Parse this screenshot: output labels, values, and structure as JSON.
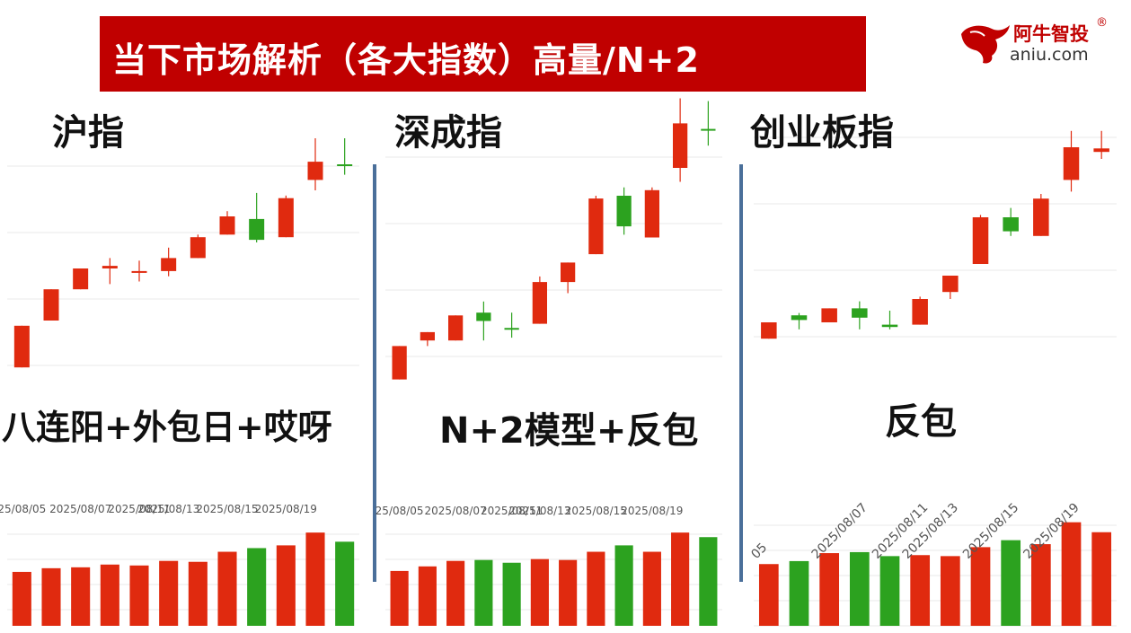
{
  "banner": {
    "title": "当下市场解析（各大指数）高量/N+2"
  },
  "brand": {
    "name_cn": "阿牛智投",
    "reg_mark": "®",
    "domain": "aniu.com"
  },
  "colors": {
    "up": "#e02a0f",
    "down": "#2ca21f",
    "banner_bg": "#c00000",
    "divider": "#4a6f9a"
  },
  "chart_data": [
    {
      "type": "candlestick",
      "title": "沪指",
      "annotation": "八连阳+外包日+哎呀",
      "x_tick_labels": [
        "25/08/05",
        "2025/08/07",
        "2025/08/11",
        "2025/08/13",
        "2025/08/15",
        "2025/08/19"
      ],
      "ylim": [
        0,
        10
      ],
      "candles": [
        {
          "o": 0.2,
          "c": 1.8,
          "h": 1.8,
          "l": 0.2,
          "dir": "up"
        },
        {
          "o": 2.0,
          "c": 3.2,
          "h": 3.2,
          "l": 2.0,
          "dir": "up"
        },
        {
          "o": 3.2,
          "c": 4.0,
          "h": 4.0,
          "l": 3.2,
          "dir": "up"
        },
        {
          "o": 4.0,
          "c": 4.1,
          "h": 4.4,
          "l": 3.4,
          "dir": "up"
        },
        {
          "o": 3.85,
          "c": 3.9,
          "h": 4.3,
          "l": 3.5,
          "dir": "up"
        },
        {
          "o": 3.9,
          "c": 4.4,
          "h": 4.8,
          "l": 3.7,
          "dir": "up"
        },
        {
          "o": 4.4,
          "c": 5.2,
          "h": 5.3,
          "l": 4.4,
          "dir": "up"
        },
        {
          "o": 5.3,
          "c": 6.0,
          "h": 6.2,
          "l": 5.3,
          "dir": "up"
        },
        {
          "o": 5.9,
          "c": 5.1,
          "h": 6.9,
          "l": 5.0,
          "dir": "down"
        },
        {
          "o": 5.2,
          "c": 6.7,
          "h": 6.8,
          "l": 5.2,
          "dir": "up"
        },
        {
          "o": 7.4,
          "c": 8.1,
          "h": 9.0,
          "l": 7.0,
          "dir": "up"
        },
        {
          "o": 7.95,
          "c": 8.0,
          "h": 9.0,
          "l": 7.6,
          "dir": "down"
        }
      ],
      "volumes": [
        {
          "v": 5.9,
          "dir": "up"
        },
        {
          "v": 6.3,
          "dir": "up"
        },
        {
          "v": 6.4,
          "dir": "up"
        },
        {
          "v": 6.7,
          "dir": "up"
        },
        {
          "v": 6.6,
          "dir": "up"
        },
        {
          "v": 7.1,
          "dir": "up"
        },
        {
          "v": 7.0,
          "dir": "up"
        },
        {
          "v": 8.1,
          "dir": "up"
        },
        {
          "v": 8.5,
          "dir": "down"
        },
        {
          "v": 8.8,
          "dir": "up"
        },
        {
          "v": 10.2,
          "dir": "up"
        },
        {
          "v": 9.2,
          "dir": "down"
        }
      ]
    },
    {
      "type": "candlestick",
      "title": "深成指",
      "annotation": "N+2模型+反包",
      "x_tick_labels": [
        "25/08/05",
        "2025/08/07",
        "2025/08/11",
        "2025/08/13",
        "2025/08/15",
        "2025/08/19"
      ],
      "ylim": [
        0,
        10
      ],
      "candles": [
        {
          "o": 0.4,
          "c": 1.6,
          "h": 1.6,
          "l": 0.4,
          "dir": "up"
        },
        {
          "o": 1.8,
          "c": 2.1,
          "h": 2.1,
          "l": 1.6,
          "dir": "up"
        },
        {
          "o": 1.8,
          "c": 2.7,
          "h": 2.7,
          "l": 1.8,
          "dir": "up"
        },
        {
          "o": 2.8,
          "c": 2.5,
          "h": 3.2,
          "l": 1.8,
          "dir": "down"
        },
        {
          "o": 2.2,
          "c": 2.25,
          "h": 2.8,
          "l": 1.9,
          "dir": "down"
        },
        {
          "o": 2.4,
          "c": 3.9,
          "h": 4.1,
          "l": 2.4,
          "dir": "up"
        },
        {
          "o": 3.9,
          "c": 4.6,
          "h": 4.6,
          "l": 3.5,
          "dir": "up"
        },
        {
          "o": 4.9,
          "c": 6.9,
          "h": 7.0,
          "l": 4.9,
          "dir": "up"
        },
        {
          "o": 7.0,
          "c": 5.9,
          "h": 7.3,
          "l": 5.6,
          "dir": "down"
        },
        {
          "o": 5.5,
          "c": 7.2,
          "h": 7.3,
          "l": 5.5,
          "dir": "up"
        },
        {
          "o": 8.0,
          "c": 9.6,
          "h": 10.5,
          "l": 7.5,
          "dir": "up"
        },
        {
          "o": 9.35,
          "c": 9.4,
          "h": 10.4,
          "l": 8.8,
          "dir": "down"
        }
      ],
      "volumes": [
        {
          "v": 6.0,
          "dir": "up"
        },
        {
          "v": 6.5,
          "dir": "up"
        },
        {
          "v": 7.1,
          "dir": "up"
        },
        {
          "v": 7.2,
          "dir": "down"
        },
        {
          "v": 6.9,
          "dir": "down"
        },
        {
          "v": 7.3,
          "dir": "up"
        },
        {
          "v": 7.2,
          "dir": "up"
        },
        {
          "v": 8.1,
          "dir": "up"
        },
        {
          "v": 8.8,
          "dir": "down"
        },
        {
          "v": 8.1,
          "dir": "up"
        },
        {
          "v": 10.2,
          "dir": "up"
        },
        {
          "v": 9.7,
          "dir": "down"
        }
      ]
    },
    {
      "type": "candlestick",
      "title": "创业板指",
      "annotation": "反包",
      "x_tick_labels": [
        "05",
        "2025/08/07",
        "2025/08/11",
        "2025/08/13",
        "2025/08/15",
        "2025/08/19"
      ],
      "ylim": [
        0,
        10
      ],
      "candles": [
        {
          "o": 0.3,
          "c": 1.0,
          "h": 1.0,
          "l": 0.3,
          "dir": "up"
        },
        {
          "o": 1.3,
          "c": 1.1,
          "h": 1.4,
          "l": 0.7,
          "dir": "down"
        },
        {
          "o": 1.0,
          "c": 1.6,
          "h": 1.6,
          "l": 1.0,
          "dir": "up"
        },
        {
          "o": 1.6,
          "c": 1.2,
          "h": 1.9,
          "l": 0.7,
          "dir": "down"
        },
        {
          "o": 0.9,
          "c": 0.8,
          "h": 1.5,
          "l": 0.7,
          "dir": "down"
        },
        {
          "o": 0.9,
          "c": 2.0,
          "h": 2.1,
          "l": 0.9,
          "dir": "up"
        },
        {
          "o": 2.3,
          "c": 3.0,
          "h": 3.0,
          "l": 2.0,
          "dir": "up"
        },
        {
          "o": 3.5,
          "c": 5.5,
          "h": 5.6,
          "l": 3.5,
          "dir": "up"
        },
        {
          "o": 5.5,
          "c": 4.9,
          "h": 5.9,
          "l": 4.7,
          "dir": "down"
        },
        {
          "o": 4.7,
          "c": 6.3,
          "h": 6.5,
          "l": 4.7,
          "dir": "up"
        },
        {
          "o": 7.1,
          "c": 8.5,
          "h": 9.2,
          "l": 6.6,
          "dir": "up"
        },
        {
          "o": 8.3,
          "c": 8.45,
          "h": 9.2,
          "l": 8.0,
          "dir": "up"
        }
      ],
      "volumes": [
        {
          "v": 6.2,
          "dir": "up"
        },
        {
          "v": 6.5,
          "dir": "down"
        },
        {
          "v": 7.3,
          "dir": "up"
        },
        {
          "v": 7.4,
          "dir": "down"
        },
        {
          "v": 7.0,
          "dir": "down"
        },
        {
          "v": 7.1,
          "dir": "up"
        },
        {
          "v": 7.0,
          "dir": "up"
        },
        {
          "v": 7.9,
          "dir": "up"
        },
        {
          "v": 8.6,
          "dir": "down"
        },
        {
          "v": 8.2,
          "dir": "up"
        },
        {
          "v": 10.4,
          "dir": "up"
        },
        {
          "v": 9.4,
          "dir": "up"
        }
      ]
    }
  ]
}
